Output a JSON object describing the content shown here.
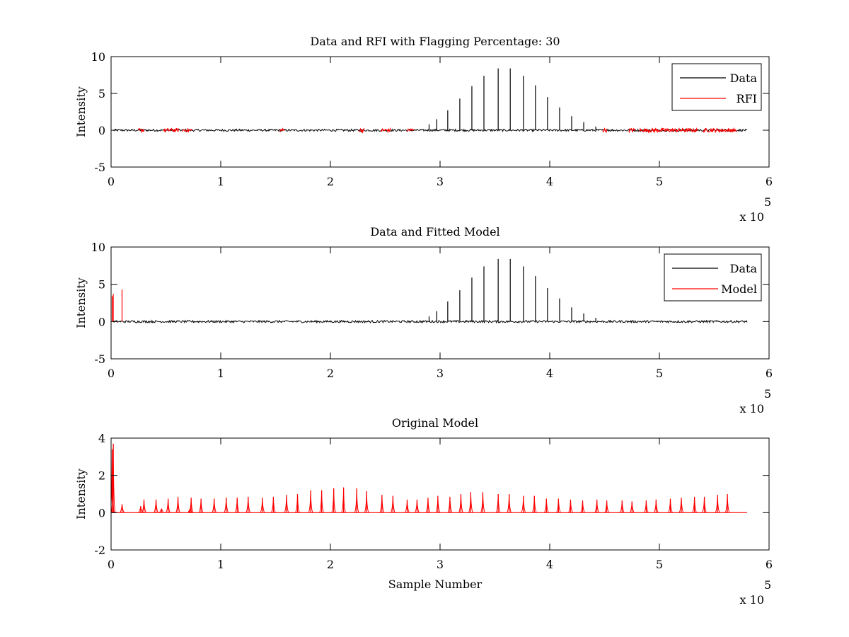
{
  "chart_data": [
    {
      "type": "line",
      "title": "Data and RFI with Flagging Percentage: 30",
      "xlabel": "",
      "ylabel": "Intensity",
      "xlim": [
        0,
        6
      ],
      "ylim": [
        -5,
        10
      ],
      "xticks": [
        0,
        1,
        2,
        3,
        4,
        5,
        6
      ],
      "yticks": [
        -5,
        0,
        5,
        10
      ],
      "x_multiplier": "x 10",
      "x_multiplier_exp": "5",
      "grid": false,
      "legend_position": "top-right",
      "series": [
        {
          "name": "Data",
          "color": "#000000",
          "kind": "spikes",
          "baseline": 0,
          "x": [
            2.9,
            2.97,
            3.07,
            3.18,
            3.29,
            3.4,
            3.53,
            3.64,
            3.76,
            3.87,
            3.98,
            4.09,
            4.2,
            4.31,
            4.42,
            4.53
          ],
          "values": [
            0.8,
            1.5,
            2.7,
            4.3,
            6.0,
            7.4,
            8.4,
            8.4,
            7.4,
            6.1,
            4.5,
            3.1,
            1.9,
            1.1,
            0.5,
            0.2
          ]
        },
        {
          "name": "RFI",
          "color": "#ff0000",
          "kind": "noise-segments",
          "baseline": 0,
          "segments": [
            [
              0.25,
              0.3
            ],
            [
              0.48,
              0.62
            ],
            [
              0.65,
              0.74
            ],
            [
              1.54,
              1.58
            ],
            [
              2.26,
              2.31
            ],
            [
              2.46,
              2.55
            ],
            [
              2.7,
              2.76
            ],
            [
              4.48,
              4.52
            ],
            [
              4.72,
              4.78
            ],
            [
              4.82,
              5.35
            ],
            [
              5.4,
              5.7
            ]
          ]
        }
      ]
    },
    {
      "type": "line",
      "title": "Data and Fitted Model",
      "xlabel": "",
      "ylabel": "Intensity",
      "xlim": [
        0,
        6
      ],
      "ylim": [
        -5,
        10
      ],
      "xticks": [
        0,
        1,
        2,
        3,
        4,
        5,
        6
      ],
      "yticks": [
        -5,
        0,
        5,
        10
      ],
      "x_multiplier": "x 10",
      "x_multiplier_exp": "5",
      "grid": false,
      "legend_position": "top-right",
      "series": [
        {
          "name": "Data",
          "color": "#000000",
          "kind": "spikes",
          "baseline": 0,
          "x": [
            2.9,
            2.97,
            3.07,
            3.18,
            3.29,
            3.4,
            3.53,
            3.64,
            3.76,
            3.87,
            3.98,
            4.09,
            4.2,
            4.31,
            4.42
          ],
          "values": [
            0.7,
            1.4,
            2.7,
            4.2,
            5.9,
            7.4,
            8.4,
            8.4,
            7.4,
            6.1,
            4.5,
            3.1,
            1.9,
            1.1,
            0.5
          ]
        },
        {
          "name": "Model",
          "color": "#ff0000",
          "kind": "spikes",
          "baseline": 0,
          "x": [
            0.01,
            0.02,
            0.1
          ],
          "values": [
            3.4,
            3.7,
            4.3
          ]
        }
      ]
    },
    {
      "type": "line",
      "title": "Original Model",
      "xlabel": "Sample Number",
      "ylabel": "Intensity",
      "xlim": [
        0,
        6
      ],
      "ylim": [
        -2,
        4
      ],
      "xticks": [
        0,
        1,
        2,
        3,
        4,
        5,
        6
      ],
      "yticks": [
        -2,
        0,
        2,
        4
      ],
      "x_multiplier": "x 10",
      "x_multiplier_exp": "5",
      "grid": false,
      "series": [
        {
          "color": "#ff0000",
          "kind": "spikes",
          "baseline": 0,
          "x_end": 5.8,
          "x": [
            0.01,
            0.02,
            0.1,
            0.27,
            0.3,
            0.41,
            0.46,
            0.52,
            0.61,
            0.72,
            0.73,
            0.82,
            0.94,
            1.05,
            1.15,
            1.25,
            1.38,
            1.48,
            1.6,
            1.7,
            1.82,
            1.92,
            2.03,
            2.12,
            2.24,
            2.33,
            2.47,
            2.57,
            2.7,
            2.79,
            2.89,
            2.98,
            3.09,
            3.19,
            3.28,
            3.39,
            3.53,
            3.63,
            3.76,
            3.86,
            3.97,
            4.08,
            4.19,
            4.3,
            4.43,
            4.52,
            4.66,
            4.75,
            4.88,
            4.97,
            5.1,
            5.2,
            5.32,
            5.41,
            5.53,
            5.62
          ],
          "values": [
            3.4,
            3.7,
            0.45,
            0.35,
            0.7,
            0.7,
            0.2,
            0.75,
            0.85,
            0.2,
            0.8,
            0.75,
            0.75,
            0.8,
            0.8,
            0.85,
            0.8,
            0.85,
            0.95,
            1.0,
            1.2,
            1.2,
            1.3,
            1.35,
            1.3,
            1.15,
            0.95,
            0.9,
            0.7,
            0.7,
            0.8,
            0.9,
            0.85,
            1.0,
            1.1,
            1.1,
            1.0,
            1.0,
            0.9,
            0.9,
            0.75,
            0.75,
            0.7,
            0.65,
            0.7,
            0.65,
            0.65,
            0.6,
            0.65,
            0.7,
            0.75,
            0.8,
            0.85,
            0.85,
            0.95,
            1.0
          ]
        }
      ]
    }
  ]
}
